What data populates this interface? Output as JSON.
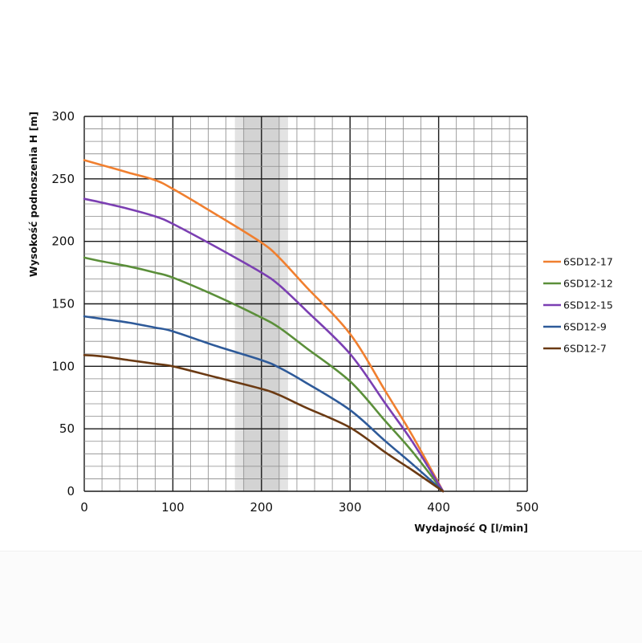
{
  "chart_data": {
    "type": "line",
    "title": "",
    "xlabel": "Wydajność Q [l/min]",
    "ylabel": "Wysokość podnoszenia H [m]",
    "xlim": [
      0,
      500
    ],
    "ylim": [
      0,
      300
    ],
    "x_major_ticks": [
      0,
      100,
      200,
      300,
      400,
      500
    ],
    "y_major_ticks": [
      0,
      50,
      100,
      150,
      200,
      250,
      300
    ],
    "x_minor_step": 20,
    "y_minor_step": 10,
    "grid": true,
    "shaded_band": {
      "x_from": 170,
      "x_to": 230,
      "inner_from": 180,
      "inner_to": 220,
      "color": "#d9d9d9"
    },
    "legend_position": "right",
    "series": [
      {
        "name": "6SD12-17",
        "color": "#f07f2f",
        "x": [
          0,
          20,
          50,
          80,
          100,
          150,
          200,
          220,
          250,
          300,
          340,
          370,
          405
        ],
        "y": [
          265,
          261,
          255,
          249,
          242,
          221,
          199,
          187,
          164,
          126,
          80,
          45,
          0
        ]
      },
      {
        "name": "6SD12-12",
        "color": "#5b8f3a",
        "x": [
          0,
          20,
          50,
          80,
          100,
          150,
          200,
          220,
          250,
          300,
          340,
          370,
          405
        ],
        "y": [
          187,
          184,
          180,
          175,
          171,
          156,
          139,
          131,
          115,
          88,
          56,
          32,
          0
        ]
      },
      {
        "name": "6SD12-15",
        "color": "#7b3fb2",
        "x": [
          0,
          20,
          50,
          80,
          100,
          150,
          200,
          220,
          250,
          300,
          340,
          370,
          405
        ],
        "y": [
          234,
          231,
          226,
          220,
          214,
          195,
          175,
          165,
          145,
          110,
          70,
          40,
          0
        ]
      },
      {
        "name": "6SD12-9",
        "color": "#2e5a99",
        "x": [
          0,
          20,
          50,
          80,
          100,
          150,
          200,
          220,
          250,
          300,
          340,
          370,
          405
        ],
        "y": [
          140,
          138,
          135,
          131,
          128,
          116,
          105,
          99,
          87,
          65,
          40,
          22,
          0
        ]
      },
      {
        "name": "6SD12-7",
        "color": "#6b3a13",
        "x": [
          0,
          20,
          50,
          80,
          100,
          150,
          200,
          220,
          250,
          300,
          340,
          370,
          405
        ],
        "y": [
          109,
          108,
          105,
          102,
          100,
          91,
          82,
          77,
          67,
          51,
          31,
          17,
          0
        ]
      }
    ]
  }
}
